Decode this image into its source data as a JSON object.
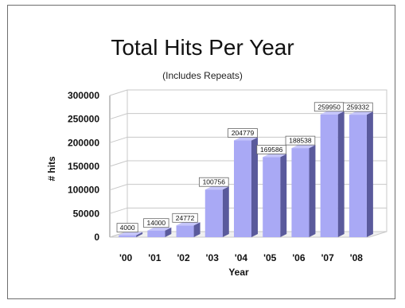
{
  "chart_data": {
    "type": "bar",
    "title": "Total Hits Per Year",
    "subtitle": "(Includes Repeats)",
    "xlabel": "Year",
    "ylabel": "# hits",
    "categories": [
      "'00",
      "'01",
      "'02",
      "'03",
      "'04",
      "'05",
      "'06",
      "'07",
      "'08"
    ],
    "values": [
      4000,
      14000,
      24772,
      100756,
      204779,
      169586,
      188538,
      259950,
      259332
    ],
    "data_labels": [
      "4000",
      "14000",
      "24772",
      "100756",
      "204779",
      "169586",
      "188538",
      "259950",
      "259332"
    ],
    "yticks": [
      "0",
      "50000",
      "100000",
      "150000",
      "200000",
      "250000",
      "300000"
    ],
    "ylim": [
      0,
      300000
    ],
    "grid": true,
    "legend": "none",
    "colors": {
      "bar_front": "#a9a9f5",
      "bar_side": "#5a5a9c",
      "bar_top": "#c6c6fa",
      "grid": "#c8c8c8",
      "frame": "#6e6e6e"
    }
  }
}
